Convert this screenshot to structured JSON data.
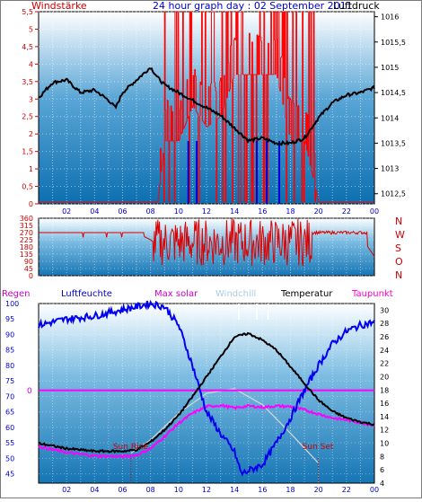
{
  "window": {
    "border": "#7a7a7a"
  },
  "top": {
    "title": "24 hour graph day : 02 September 2011",
    "left_label": "Windstärke",
    "right_label": "Luftdruck",
    "colors": {
      "title": "#0000cc",
      "left_label": "#cc0000",
      "right_label": "#000000"
    }
  },
  "middle": {
    "compass": [
      "N",
      "W",
      "S",
      "O",
      "N"
    ],
    "compass_color": "#cc0000"
  },
  "bottom": {
    "legend": [
      {
        "label": "Regen",
        "color": "#cc00cc"
      },
      {
        "label": "Luftfeuchte",
        "color": "#0000cc"
      },
      {
        "label": "Max solar",
        "color": "#cc00cc"
      },
      {
        "label": "Windchill",
        "color": "#aacce6"
      },
      {
        "label": "Temperatur",
        "color": "#000000"
      },
      {
        "label": "Taupunkt",
        "color": "#ff00cc"
      }
    ],
    "sun_rise_label": "Sun Rise",
    "sun_set_label": "Sun Set",
    "rain_value_label": "0"
  },
  "chart_data": [
    {
      "type": "line",
      "title": "24 hour graph day : 02 September 2011",
      "x_ticks": [
        "02",
        "04",
        "06",
        "08",
        "10",
        "12",
        "14",
        "16",
        "18",
        "20",
        "22",
        "00"
      ],
      "y_left_ticks": [
        "0",
        "0,5",
        "1",
        "1,5",
        "2",
        "2,5",
        "3",
        "3,5",
        "4",
        "4,5",
        "5",
        "5,5"
      ],
      "y_right_ticks": [
        "1012,5",
        "1013",
        "1013,5",
        "1014",
        "1014,5",
        "1015",
        "1015,5",
        "1016"
      ],
      "ylim_left": [
        0,
        5.5
      ],
      "ylim_right": [
        1012.3,
        1016.1
      ],
      "xlim": [
        0,
        24
      ],
      "series": [
        {
          "name": "Luftdruck",
          "axis": "right",
          "color": "#000000",
          "x": [
            0,
            1,
            2,
            3,
            4,
            5,
            5.5,
            6,
            7,
            8,
            8.5,
            9,
            10,
            11,
            12,
            13,
            14,
            15,
            16,
            17,
            18,
            19,
            20,
            21,
            22,
            23,
            24
          ],
          "y": [
            1014.4,
            1014.7,
            1014.75,
            1014.5,
            1014.55,
            1014.35,
            1014.2,
            1014.5,
            1014.75,
            1015.0,
            1014.8,
            1014.65,
            1014.5,
            1014.35,
            1014.2,
            1014.05,
            1013.8,
            1013.55,
            1013.6,
            1013.5,
            1013.5,
            1013.6,
            1014.0,
            1014.3,
            1014.45,
            1014.5,
            1014.6
          ]
        },
        {
          "name": "Windstärke",
          "axis": "left",
          "color": "#ff0000",
          "x": [
            0,
            8.5,
            9,
            10,
            11,
            12,
            13,
            14,
            15,
            16,
            17,
            18,
            19,
            20,
            21,
            22,
            23,
            24
          ],
          "y": [
            0.05,
            0.05,
            1.8,
            1.8,
            2.8,
            2.2,
            2.5,
            3.7,
            3.7,
            3.7,
            3.7,
            1.8,
            1.8,
            0.05,
            0.05,
            0.05,
            0.05,
            0.05
          ]
        }
      ]
    },
    {
      "type": "line",
      "title": "",
      "x_ticks": [
        "02",
        "04",
        "06",
        "08",
        "10",
        "12",
        "14",
        "16",
        "18",
        "20",
        "22",
        "00"
      ],
      "y_ticks": [
        "0",
        "45",
        "90",
        "135",
        "180",
        "225",
        "270",
        "315",
        "360"
      ],
      "ylim": [
        0,
        360
      ],
      "xlim": [
        0,
        24
      ],
      "series": [
        {
          "name": "Windrichtung",
          "color": "#dd0000",
          "x": [
            0,
            2,
            4,
            6,
            7,
            8,
            9,
            10,
            11,
            12,
            13,
            14,
            15,
            16,
            17,
            18,
            19,
            20,
            21,
            22,
            23,
            24
          ],
          "y": [
            270,
            270,
            270,
            270,
            270,
            225,
            160,
            200,
            180,
            230,
            190,
            250,
            220,
            260,
            210,
            200,
            190,
            300,
            280,
            270,
            250,
            120
          ]
        }
      ]
    },
    {
      "type": "line",
      "title": "",
      "x_ticks": [
        "02",
        "04",
        "06",
        "08",
        "10",
        "12",
        "14",
        "16",
        "18",
        "20",
        "22",
        "00"
      ],
      "y_left_ticks": [
        "45",
        "50",
        "55",
        "60",
        "65",
        "70",
        "75",
        "80",
        "85",
        "90",
        "95",
        "100"
      ],
      "y_right_ticks": [
        "4",
        "6",
        "8",
        "10",
        "12",
        "14",
        "16",
        "18",
        "20",
        "22",
        "24",
        "26",
        "28",
        "30"
      ],
      "ylim_left": [
        42,
        100
      ],
      "ylim_right": [
        4,
        31
      ],
      "xlim": [
        0,
        24
      ],
      "series": [
        {
          "name": "Luftfeuchte",
          "axis": "left",
          "color": "#0000ee",
          "x": [
            0,
            2,
            4,
            6,
            8,
            9,
            10,
            11,
            12,
            13,
            14,
            14.5,
            15,
            16,
            17,
            18,
            19,
            20,
            21,
            22,
            23,
            24
          ],
          "y": [
            93,
            95,
            96,
            98,
            100,
            99,
            93,
            80,
            65,
            58,
            52,
            45,
            46,
            48,
            55,
            63,
            72,
            80,
            87,
            91,
            93,
            94
          ]
        },
        {
          "name": "Temperatur",
          "axis": "right",
          "color": "#000000",
          "x": [
            0,
            2,
            4,
            6,
            7,
            8,
            9,
            10,
            11,
            12,
            13,
            14,
            15,
            16,
            17,
            18,
            19,
            20,
            21,
            22,
            23,
            24
          ],
          "y": [
            10.0,
            9.2,
            8.8,
            8.8,
            9.0,
            10.2,
            12.0,
            14.2,
            17.0,
            20.0,
            23.0,
            26.0,
            26.5,
            25.5,
            24.0,
            21.5,
            19.0,
            16.5,
            14.8,
            13.8,
            13.2,
            12.8
          ]
        },
        {
          "name": "Taupunkt",
          "axis": "right",
          "color": "#ff00ff",
          "x": [
            0,
            2,
            4,
            6,
            7,
            8,
            9,
            10,
            11,
            12,
            13,
            14,
            15,
            16,
            17,
            18,
            19,
            20,
            21,
            22,
            23,
            24
          ],
          "y": [
            9.5,
            8.6,
            8.1,
            8.0,
            8.2,
            9.2,
            11.0,
            13.0,
            14.5,
            15.5,
            15.7,
            15.3,
            15.6,
            15.4,
            15.6,
            15.5,
            15.0,
            14.4,
            13.8,
            13.5,
            13.1,
            12.7
          ]
        },
        {
          "name": "Max solar",
          "axis": "right",
          "color": "#d8d8d8",
          "x": [
            6.6,
            8,
            10,
            12,
            14,
            16,
            18,
            20
          ],
          "y": [
            8.5,
            10.5,
            14.5,
            17.5,
            18.2,
            15.8,
            11.5,
            7.0
          ]
        },
        {
          "name": "Regen",
          "axis": "left",
          "color": "#ff00ff",
          "x": [
            0,
            24
          ],
          "y": [
            72,
            72
          ]
        }
      ],
      "annotations": [
        {
          "text": "Sun Rise",
          "x": 6.6
        },
        {
          "text": "Sun Set",
          "x": 20.0
        }
      ]
    }
  ]
}
